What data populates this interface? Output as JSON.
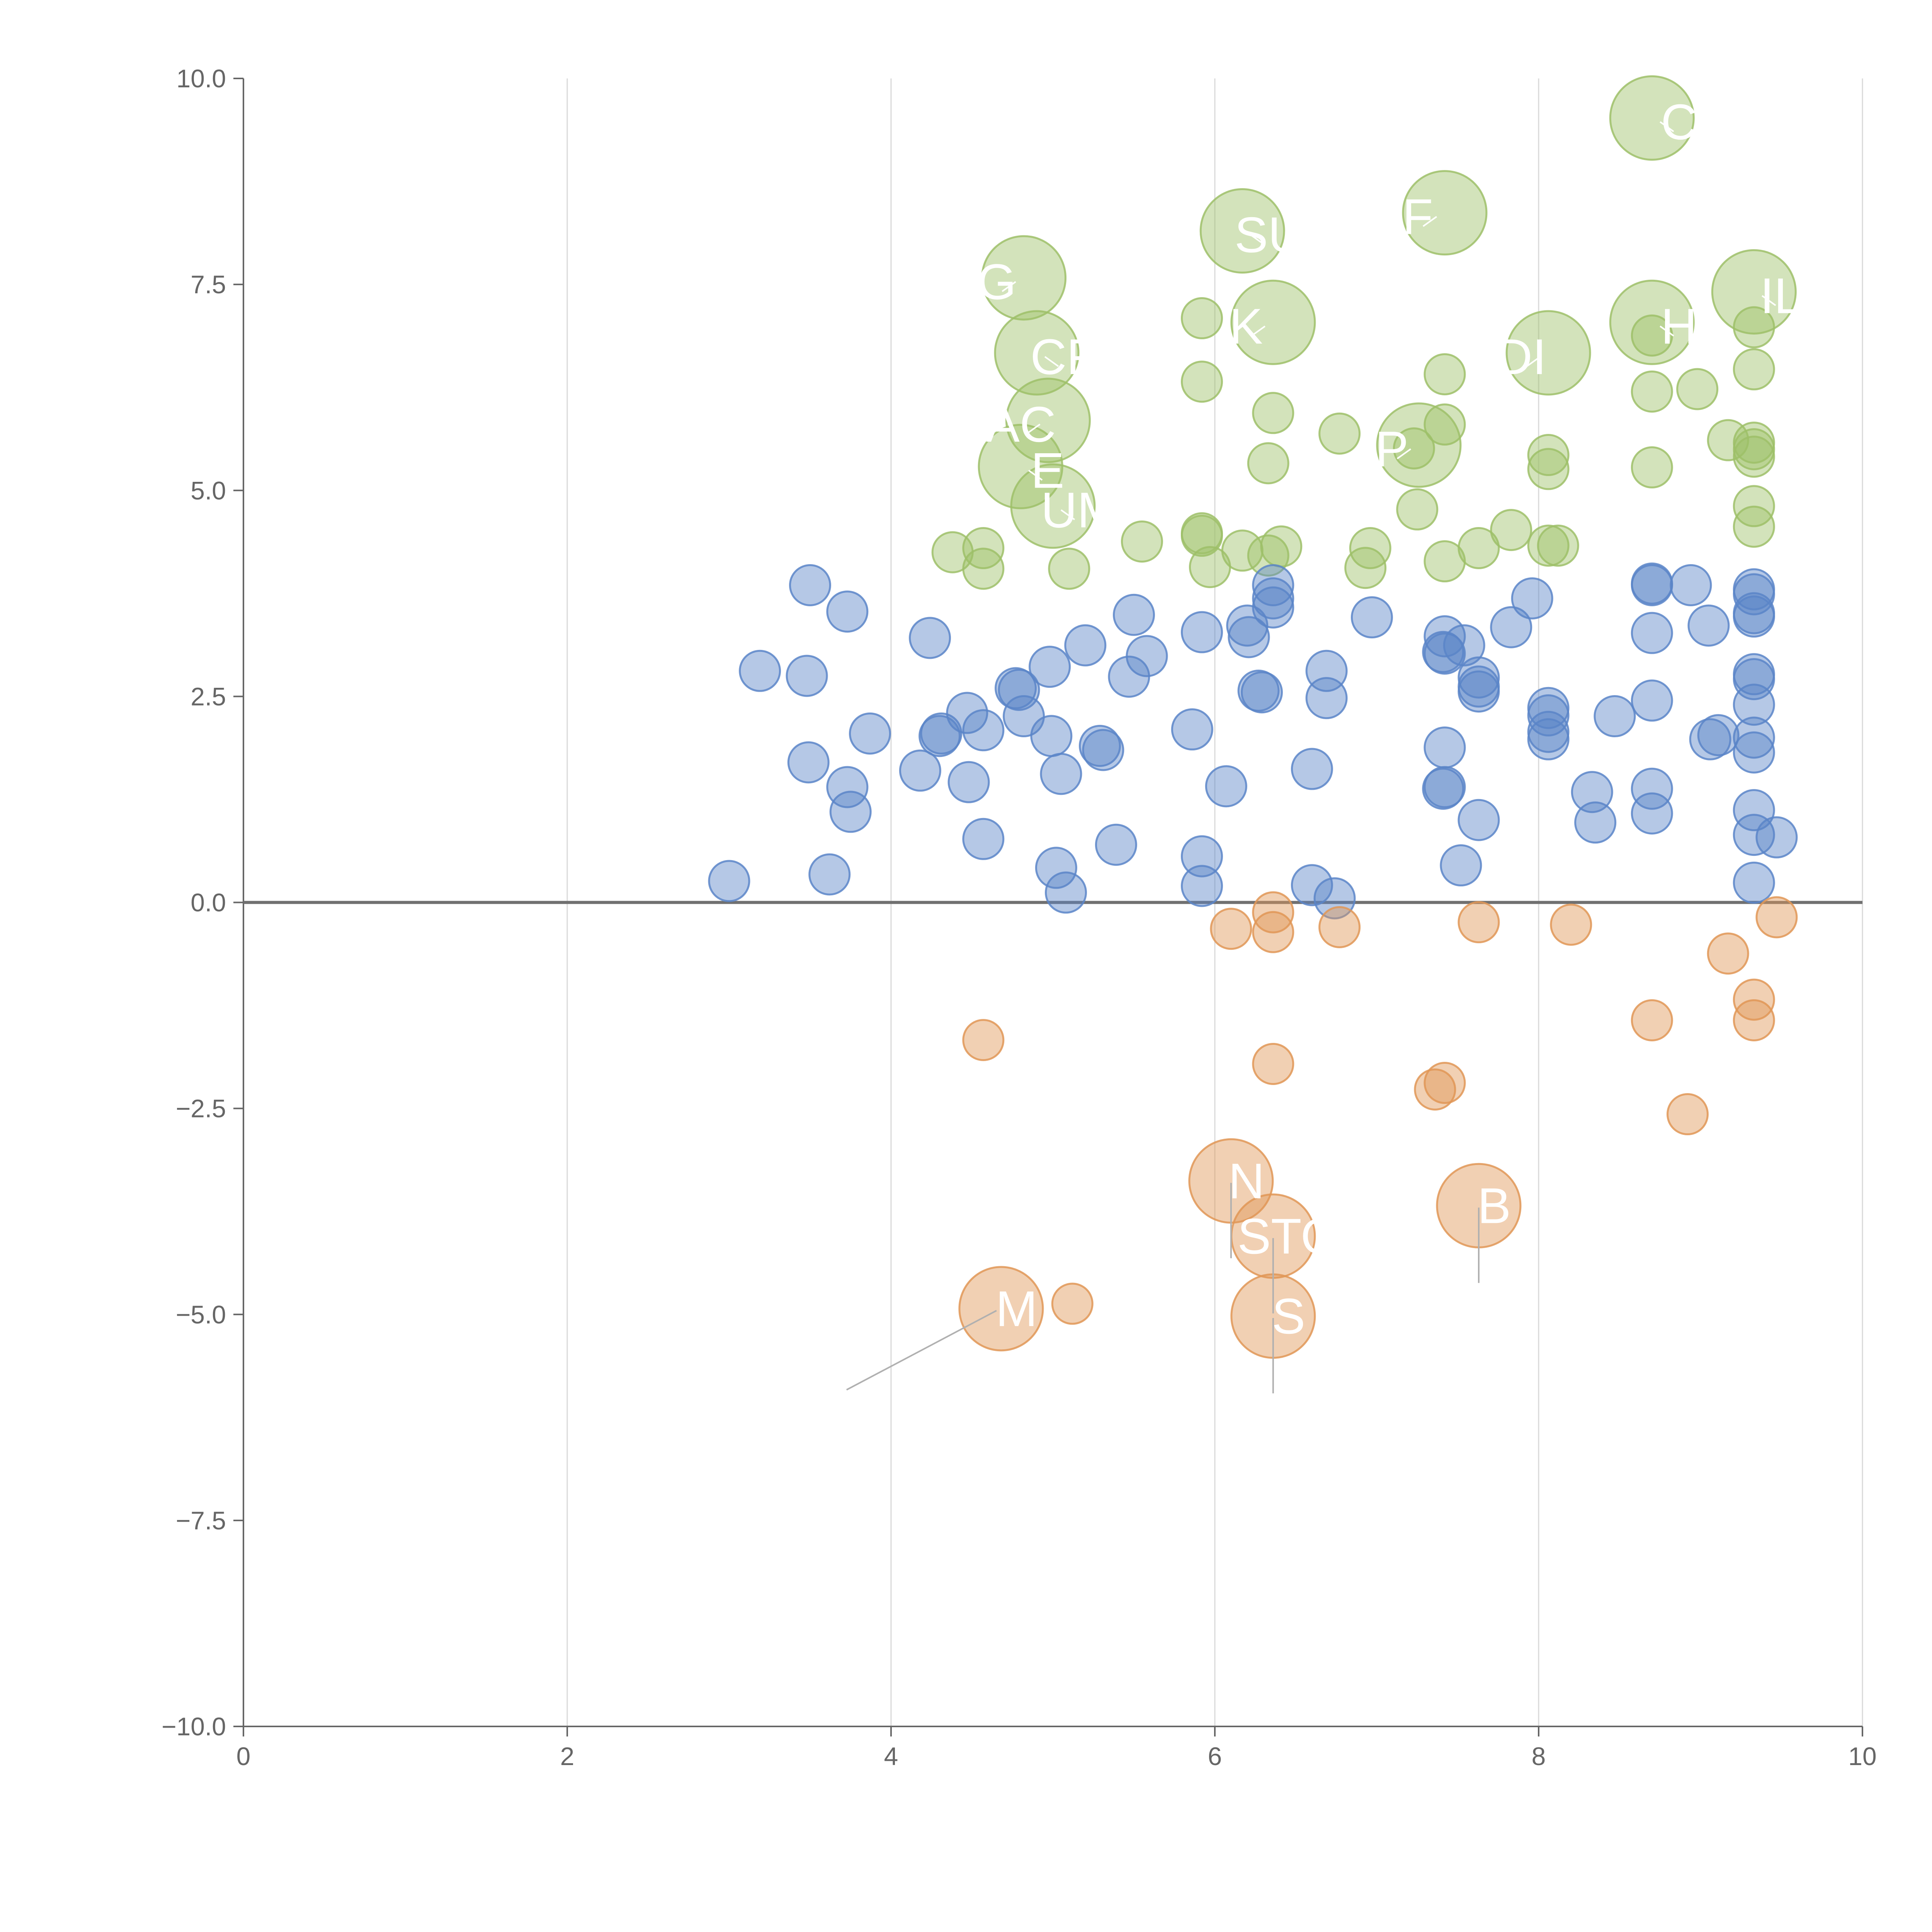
{
  "chart_data": {
    "type": "scatter",
    "title": "",
    "xlabel": "",
    "ylabel": "",
    "xlim": [
      0,
      10
    ],
    "ylim": [
      -10,
      10
    ],
    "grid": "vertical-only",
    "x_ticks": [
      0,
      2,
      4,
      6,
      8,
      10
    ],
    "y_ticks": [
      10,
      7.5,
      5,
      2.5,
      0,
      -2.5,
      -5,
      -7.5,
      -10
    ],
    "x_tick_labels": [
      "0",
      "2",
      "4",
      "6",
      "8",
      "10"
    ],
    "y_tick_labels": [
      "10.0",
      "7.5",
      "5.0",
      "2.5",
      "0.0",
      "−2.5",
      "−5.0",
      "−7.5",
      "−10.0"
    ],
    "colors": {
      "positive_high": "#9dc069",
      "positive_low": "#5b85c8",
      "negative": "#e09656",
      "axis": "#666666",
      "grid": "#d9d9d9",
      "zero_line": "#707070",
      "leader": "#b0b0b0",
      "label": "#ffffff"
    },
    "series": [
      {
        "name": "high",
        "color": "#9dc069",
        "points": [
          [
            4.38,
            4.25
          ],
          [
            4.57,
            4.3
          ],
          [
            4.57,
            4.05
          ],
          [
            5.1,
            4.05
          ],
          [
            5.55,
            4.38
          ],
          [
            5.92,
            4.48
          ],
          [
            5.92,
            4.45
          ],
          [
            5.97,
            4.07
          ],
          [
            6.17,
            4.27
          ],
          [
            6.33,
            4.21
          ],
          [
            6.41,
            4.32
          ],
          [
            6.93,
            4.06
          ],
          [
            6.96,
            4.3
          ],
          [
            7.42,
            4.14
          ],
          [
            7.63,
            4.3
          ],
          [
            7.83,
            4.52
          ],
          [
            8.06,
            4.33
          ],
          [
            8.12,
            4.33
          ],
          [
            7.25,
            4.77
          ],
          [
            9.33,
            4.56
          ],
          [
            9.33,
            4.81
          ],
          [
            6.33,
            5.33
          ],
          [
            7.23,
            5.51
          ],
          [
            8.06,
            5.26
          ],
          [
            8.06,
            5.43
          ],
          [
            8.7,
            5.28
          ],
          [
            9.17,
            5.61
          ],
          [
            9.33,
            5.5
          ],
          [
            9.33,
            5.58
          ],
          [
            9.33,
            5.41
          ],
          [
            6.77,
            5.69
          ],
          [
            7.42,
            5.8
          ],
          [
            6.36,
            5.94
          ],
          [
            5.92,
            6.32
          ],
          [
            7.42,
            6.41
          ],
          [
            8.7,
            6.2
          ],
          [
            8.98,
            6.23
          ],
          [
            9.33,
            6.47
          ],
          [
            5.92,
            7.09
          ],
          [
            8.7,
            6.88
          ],
          [
            9.33,
            6.98
          ]
        ]
      },
      {
        "name": "mid",
        "color": "#5b85c8",
        "points": [
          [
            3.0,
            0.26
          ],
          [
            3.62,
            0.34
          ],
          [
            3.5,
            3.85
          ],
          [
            3.73,
            3.53
          ],
          [
            3.48,
            2.75
          ],
          [
            3.19,
            2.81
          ],
          [
            3.87,
            2.05
          ],
          [
            3.49,
            1.7
          ],
          [
            3.73,
            1.4
          ],
          [
            3.75,
            1.1
          ],
          [
            4.24,
            3.21
          ],
          [
            4.18,
            1.6
          ],
          [
            4.31,
            2.05
          ],
          [
            4.3,
            2.02
          ],
          [
            4.47,
            2.3
          ],
          [
            4.57,
            2.09
          ],
          [
            4.48,
            1.46
          ],
          [
            4.57,
            0.77
          ],
          [
            4.77,
            2.6
          ],
          [
            4.79,
            2.58
          ],
          [
            4.82,
            2.26
          ],
          [
            4.98,
            2.86
          ],
          [
            5.2,
            3.12
          ],
          [
            4.99,
            2.02
          ],
          [
            5.05,
            1.56
          ],
          [
            5.29,
            1.9
          ],
          [
            5.31,
            1.85
          ],
          [
            5.5,
            3.49
          ],
          [
            5.47,
            2.74
          ],
          [
            5.58,
            2.99
          ],
          [
            5.39,
            0.7
          ],
          [
            5.02,
            0.42
          ],
          [
            5.08,
            0.12
          ],
          [
            5.92,
            3.28
          ],
          [
            5.86,
            2.1
          ],
          [
            6.2,
            3.36
          ],
          [
            6.21,
            3.22
          ],
          [
            6.36,
            3.85
          ],
          [
            6.36,
            3.69
          ],
          [
            6.36,
            3.58
          ],
          [
            6.27,
            2.57
          ],
          [
            6.29,
            2.55
          ],
          [
            6.07,
            1.41
          ],
          [
            5.92,
            0.56
          ],
          [
            5.92,
            0.2
          ],
          [
            6.69,
            2.81
          ],
          [
            6.69,
            2.48
          ],
          [
            6.6,
            1.62
          ],
          [
            6.97,
            3.46
          ],
          [
            6.6,
            0.21
          ],
          [
            6.74,
            0.05
          ],
          [
            7.42,
            3.23
          ],
          [
            7.42,
            3.02
          ],
          [
            7.41,
            3.04
          ],
          [
            7.54,
            3.12
          ],
          [
            7.63,
            2.73
          ],
          [
            7.63,
            2.62
          ],
          [
            7.63,
            2.56
          ],
          [
            7.42,
            1.88
          ],
          [
            7.42,
            1.4
          ],
          [
            7.41,
            1.38
          ],
          [
            7.63,
            1.0
          ],
          [
            7.52,
            0.45
          ],
          [
            7.96,
            3.69
          ],
          [
            7.83,
            3.34
          ],
          [
            8.06,
            2.36
          ],
          [
            8.06,
            2.27
          ],
          [
            8.06,
            2.07
          ],
          [
            8.06,
            1.98
          ],
          [
            8.47,
            2.26
          ],
          [
            8.33,
            1.34
          ],
          [
            8.35,
            0.97
          ],
          [
            8.7,
            3.87
          ],
          [
            8.7,
            3.85
          ],
          [
            8.94,
            3.85
          ],
          [
            8.7,
            3.27
          ],
          [
            9.05,
            3.36
          ],
          [
            8.7,
            2.45
          ],
          [
            9.11,
            2.03
          ],
          [
            9.06,
            1.98
          ],
          [
            8.7,
            1.38
          ],
          [
            8.7,
            1.08
          ],
          [
            9.33,
            3.8
          ],
          [
            9.33,
            3.74
          ],
          [
            9.33,
            3.51
          ],
          [
            9.33,
            3.47
          ],
          [
            9.33,
            2.77
          ],
          [
            9.33,
            2.71
          ],
          [
            9.33,
            2.4
          ],
          [
            9.33,
            2.0
          ],
          [
            9.33,
            1.82
          ],
          [
            9.33,
            1.12
          ],
          [
            9.33,
            0.82
          ],
          [
            9.47,
            0.79
          ],
          [
            9.33,
            0.24
          ]
        ]
      },
      {
        "name": "negative",
        "color": "#e09656",
        "points": [
          [
            6.1,
            -0.32
          ],
          [
            6.36,
            -0.12
          ],
          [
            6.36,
            -0.36
          ],
          [
            6.77,
            -0.3
          ],
          [
            7.63,
            -0.24
          ],
          [
            8.2,
            -0.27
          ],
          [
            9.47,
            -0.18
          ],
          [
            9.17,
            -0.62
          ],
          [
            9.33,
            -1.18
          ],
          [
            9.33,
            -1.43
          ],
          [
            8.7,
            -1.43
          ],
          [
            4.57,
            -1.67
          ],
          [
            6.36,
            -1.96
          ],
          [
            7.42,
            -2.19
          ],
          [
            7.36,
            -2.27
          ],
          [
            8.92,
            -2.57
          ],
          [
            5.12,
            -4.87
          ]
        ]
      },
      {
        "name": "labeled",
        "points": [
          {
            "label": "C",
            "x": 8.7,
            "y": 9.52,
            "color": "#9dc069"
          },
          {
            "label": "F",
            "x": 7.42,
            "y": 8.37,
            "color": "#9dc069"
          },
          {
            "label": "SU",
            "x": 6.17,
            "y": 8.15,
            "color": "#9dc069"
          },
          {
            "label": "G",
            "x": 4.82,
            "y": 7.58,
            "color": "#9dc069"
          },
          {
            "label": "IL",
            "x": 9.33,
            "y": 7.41,
            "color": "#9dc069"
          },
          {
            "label": "K",
            "x": 6.36,
            "y": 7.04,
            "color": "#9dc069"
          },
          {
            "label": "H",
            "x": 8.7,
            "y": 7.04,
            "color": "#9dc069"
          },
          {
            "label": "DI",
            "x": 8.06,
            "y": 6.67,
            "color": "#9dc069"
          },
          {
            "label": "CF",
            "x": 4.9,
            "y": 6.67,
            "color": "#9dc069"
          },
          {
            "label": "AC",
            "x": 4.97,
            "y": 5.85,
            "color": "#9dc069"
          },
          {
            "label": "E",
            "x": 4.8,
            "y": 5.29,
            "color": "#9dc069"
          },
          {
            "label": "P",
            "x": 7.26,
            "y": 5.55,
            "color": "#9dc069"
          },
          {
            "label": "UM",
            "x": 5.0,
            "y": 4.81,
            "color": "#9dc069"
          },
          {
            "label": "N",
            "x": 6.1,
            "y": -3.38,
            "color": "#e09656"
          },
          {
            "label": "B",
            "x": 7.63,
            "y": -3.68,
            "color": "#e09656"
          },
          {
            "label": "STO",
            "x": 6.36,
            "y": -4.05,
            "color": "#e09656"
          },
          {
            "label": "S",
            "x": 6.36,
            "y": -5.02,
            "color": "#e09656"
          },
          {
            "label": "M",
            "x": 4.68,
            "y": -4.93,
            "color": "#e09656"
          }
        ]
      }
    ]
  }
}
